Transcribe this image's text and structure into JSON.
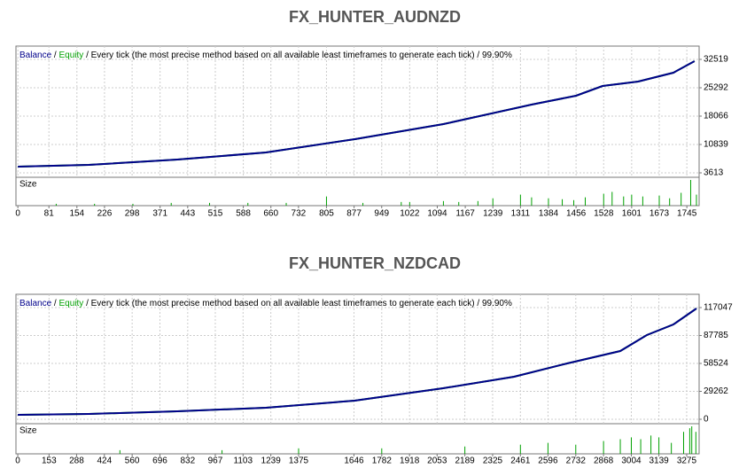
{
  "chart_data": [
    {
      "type": "line",
      "title": "FX_HUNTER_AUDNZD",
      "separator": "/",
      "method": "Every tick (the most precise method based on all available least timeframes to generate each tick)",
      "quality": "99.90%",
      "x": [
        0,
        185,
        416,
        647,
        879,
        1110,
        1340,
        1456,
        1525,
        1618,
        1710,
        1765
      ],
      "series": [
        {
          "name": "Equity",
          "color": "#00a000",
          "values": [
            5194,
            5645,
            7000,
            8806,
            12193,
            16032,
            21000,
            23258,
            25742,
            26871,
            29129,
            32065
          ]
        },
        {
          "name": "Balance",
          "color": "#00008b",
          "values": [
            5194,
            5645,
            7000,
            8806,
            12193,
            16032,
            21000,
            23258,
            25742,
            26871,
            29129,
            32065
          ]
        }
      ],
      "xlim": [
        -5,
        1777
      ],
      "ylim": [
        2484,
        35906
      ],
      "xticks": [
        0,
        81,
        154,
        226,
        298,
        371,
        443,
        515,
        588,
        660,
        732,
        805,
        877,
        949,
        1022,
        1094,
        1167,
        1239,
        1311,
        1384,
        1456,
        1528,
        1601,
        1673,
        1745
      ],
      "yticks": [
        3613,
        10839,
        18066,
        25292,
        32519
      ],
      "grid": true,
      "size": {
        "label": "Size",
        "color": "#00a000",
        "x": [
          100,
          200,
          300,
          400,
          500,
          600,
          700,
          805,
          900,
          1000,
          1022,
          1110,
          1150,
          1200,
          1239,
          1311,
          1340,
          1384,
          1420,
          1450,
          1480,
          1528,
          1550,
          1580,
          1601,
          1630,
          1673,
          1700,
          1730,
          1755,
          1770
        ],
        "values": [
          2,
          2,
          2,
          3,
          3,
          3,
          3,
          10,
          3,
          4,
          4,
          5,
          4,
          5,
          8,
          12,
          9,
          8,
          7,
          6,
          9,
          13,
          15,
          10,
          12,
          10,
          11,
          8,
          14,
          28,
          12
        ]
      }
    },
    {
      "type": "line",
      "title": "FX_HUNTER_NZDCAD",
      "separator": "/",
      "method": "Every tick (the most precise method based on all available least timeframes to generate each tick)",
      "quality": "99.90%",
      "x": [
        0,
        347,
        781,
        1215,
        1649,
        2082,
        2430,
        2690,
        2950,
        3080,
        3210,
        3323
      ],
      "series": [
        {
          "name": "Equity",
          "color": "#00a000",
          "values": [
            4645,
            5574,
            8361,
            12077,
            19509,
            32515,
            44592,
            58527,
            71533,
            88255,
            99403,
            116125
          ]
        },
        {
          "name": "Balance",
          "color": "#00008b",
          "values": [
            4645,
            5574,
            8361,
            12077,
            19509,
            32515,
            44592,
            58527,
            71533,
            88255,
            99403,
            116125
          ]
        }
      ],
      "xlim": [
        -9,
        3336
      ],
      "ylim": [
        -4645,
        130981
      ],
      "xticks": [
        0,
        153,
        288,
        424,
        560,
        696,
        832,
        967,
        1103,
        1239,
        1375,
        1646,
        1782,
        1918,
        2053,
        2189,
        2325,
        2461,
        2596,
        2732,
        2868,
        3004,
        3139,
        3275
      ],
      "yticks": [
        0,
        29262,
        58524,
        87785,
        117047
      ],
      "grid": true,
      "size": {
        "label": "Size",
        "color": "#00a000",
        "x": [
          500,
          1000,
          1375,
          1782,
          2189,
          2461,
          2596,
          2732,
          2868,
          2950,
          3004,
          3050,
          3100,
          3139,
          3200,
          3260,
          3290,
          3300,
          3320
        ],
        "values": [
          2,
          2,
          3,
          3,
          4,
          5,
          6,
          5,
          7,
          8,
          9,
          8,
          10,
          9,
          6,
          12,
          14,
          15,
          12
        ]
      }
    }
  ]
}
